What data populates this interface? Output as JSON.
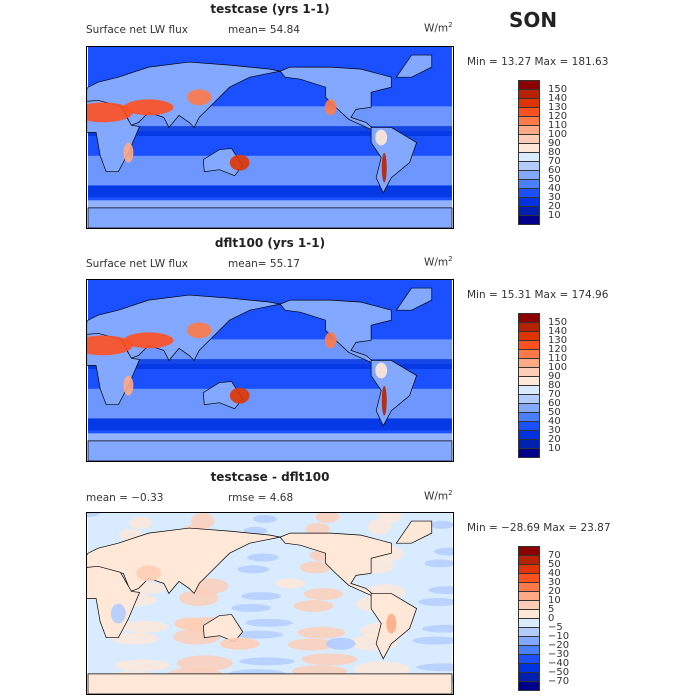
{
  "season": "SON",
  "units": "W/m",
  "units_sup": "2",
  "palette": [
    "#8b0000",
    "#b52200",
    "#e03500",
    "#ff5020",
    "#ff7a48",
    "#ffaa85",
    "#ffcdb5",
    "#ffe8d8",
    "#d8ebff",
    "#b3ccff",
    "#82a8ff",
    "#4a80ff",
    "#1a50ff",
    "#0033e0",
    "#0020b0",
    "#00008b"
  ],
  "panels": [
    {
      "title": "testcase (yrs 1-1)",
      "variable": "Surface net LW flux",
      "stat1": "mean=  54.84",
      "stat2": "",
      "minmax": "Min =   13.27  Max =  181.63",
      "levels": [
        "150",
        "140",
        "130",
        "120",
        "110",
        "100",
        "90",
        "80",
        "70",
        "60",
        "50",
        "40",
        "30",
        "20",
        "10"
      ],
      "field": "abs"
    },
    {
      "title": "dflt100 (yrs 1-1)",
      "variable": "Surface net LW flux",
      "stat1": "mean=  55.17",
      "stat2": "",
      "minmax": "Min =   15.31  Max =  174.96",
      "levels": [
        "150",
        "140",
        "130",
        "120",
        "110",
        "100",
        "90",
        "80",
        "70",
        "60",
        "50",
        "40",
        "30",
        "20",
        "10"
      ],
      "field": "abs"
    },
    {
      "title": "testcase - dflt100",
      "variable": "mean =  −0.33",
      "stat1": "rmse =   4.68",
      "stat2": "",
      "minmax": "Min = −28.69  Max =   23.87",
      "levels": [
        "70",
        "50",
        "40",
        "30",
        "20",
        "10",
        "5",
        "0",
        "−5",
        "−10",
        "−20",
        "−30",
        "−40",
        "−50",
        "−70"
      ],
      "field": "diff"
    }
  ]
}
